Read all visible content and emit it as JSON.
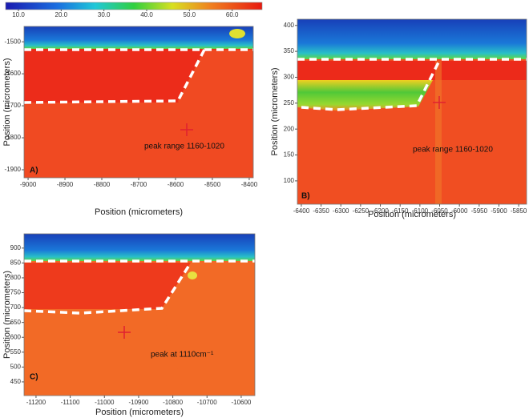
{
  "colorbar": {
    "clim": [
      7,
      67
    ],
    "ticks": [
      {
        "value": 10,
        "label": "10.0"
      },
      {
        "value": 20,
        "label": "20.0"
      },
      {
        "value": 30,
        "label": "30.0"
      },
      {
        "value": 40,
        "label": "40.0"
      },
      {
        "value": 50,
        "label": "50.0"
      },
      {
        "value": 60,
        "label": "60.0"
      }
    ]
  },
  "chart_data": [
    {
      "type": "heatmap",
      "panel_label": "A)",
      "annotation": "peak range 1160-1020",
      "xlabel": "Position (micrometers)",
      "ylabel": "Position (micrometers)",
      "xlim": [
        -9011,
        -8389
      ],
      "xticks": [
        -9000,
        -8900,
        -8800,
        -8700,
        -8600,
        -8500,
        -8400
      ],
      "ylim": [
        -1925,
        -1452
      ],
      "yticks": [
        -1500,
        -1600,
        -1700,
        -1800,
        -1900
      ]
    },
    {
      "type": "heatmap",
      "panel_label": "B)",
      "annotation": "peak range 1160-1020",
      "xlabel": "Position (micrometers)",
      "ylabel": "Position (micrometers)",
      "xlim": [
        -6410,
        -5830
      ],
      "xticks": [
        -6400,
        -6350,
        -6300,
        -6250,
        -6200,
        -6150,
        -6100,
        -6050,
        -6000,
        -5950,
        -5900,
        -5850
      ],
      "ylim": [
        55,
        412
      ],
      "yticks": [
        100,
        150,
        200,
        250,
        300,
        350,
        400
      ]
    },
    {
      "type": "heatmap",
      "panel_label": "C)",
      "annotation": "peak at 1110cm⁻¹",
      "xlabel": "Position (micrometers)",
      "ylabel": "Position (micrometers)",
      "xlim": [
        -11235,
        -10560
      ],
      "xticks": [
        -11200,
        -11100,
        -11000,
        -10900,
        -10800,
        -10700,
        -10600
      ],
      "ylim": [
        404,
        948
      ],
      "yticks": [
        450,
        500,
        550,
        600,
        650,
        700,
        750,
        800,
        850,
        900
      ]
    }
  ]
}
